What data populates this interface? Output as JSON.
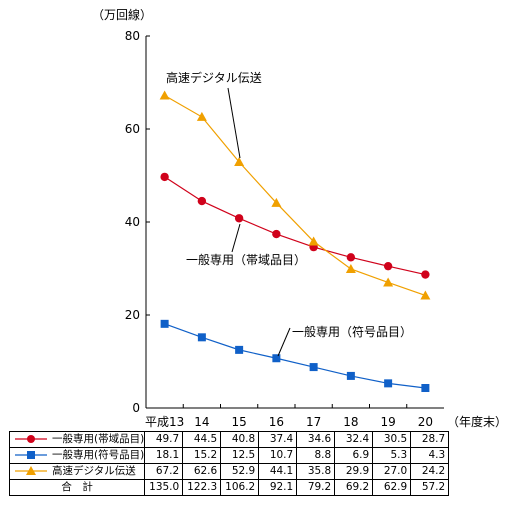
{
  "chart_data": {
    "type": "line",
    "unit_label": "（万回線）",
    "period_label": "（年度末）",
    "x": [
      "平成13",
      "14",
      "15",
      "16",
      "17",
      "18",
      "19",
      "20"
    ],
    "ylim": [
      0,
      80
    ],
    "yticks": [
      0,
      20,
      40,
      60,
      80
    ],
    "grid": false,
    "series": [
      {
        "name": "一般専用(帯域品目)",
        "annotation": "一般専用（帯域品目）",
        "marker": "circle",
        "color": "#d0021b",
        "values": [
          49.7,
          44.5,
          40.8,
          37.4,
          34.6,
          32.4,
          30.5,
          28.7
        ]
      },
      {
        "name": "一般専用(符号品目)",
        "annotation": "一般専用（符号品目）",
        "marker": "square",
        "color": "#1060c8",
        "values": [
          18.1,
          15.2,
          12.5,
          10.7,
          8.8,
          6.9,
          5.3,
          4.3
        ]
      },
      {
        "name": "高速デジタル伝送",
        "annotation": "高速デジタル伝送",
        "marker": "triangle",
        "color": "#f0a000",
        "values": [
          67.2,
          62.6,
          52.9,
          44.1,
          35.8,
          29.9,
          27.0,
          24.2
        ]
      }
    ],
    "total": {
      "name": "合　計",
      "values": [
        135.0,
        122.3,
        106.2,
        92.1,
        79.2,
        69.2,
        62.9,
        57.2
      ]
    }
  }
}
